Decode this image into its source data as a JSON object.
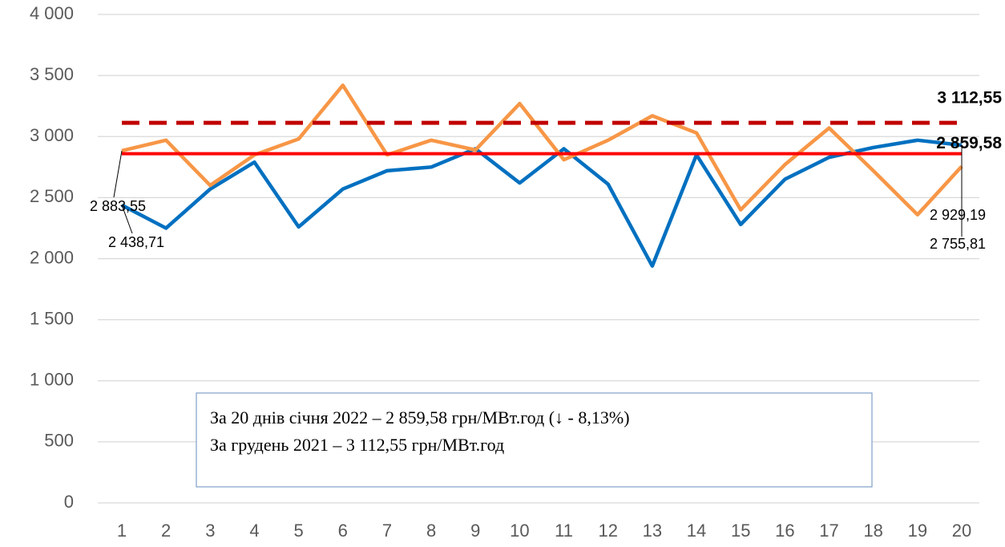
{
  "chart_data": {
    "type": "line",
    "categories": [
      1,
      2,
      3,
      4,
      5,
      6,
      7,
      8,
      9,
      10,
      11,
      12,
      13,
      14,
      15,
      16,
      17,
      18,
      19,
      20
    ],
    "series": [
      {
        "color": "#0070c0",
        "values": [
          2438.71,
          2250,
          2570,
          2790,
          2260,
          2570,
          2720,
          2750,
          2900,
          2620,
          2900,
          2610,
          1940,
          2850,
          2280,
          2650,
          2830,
          2910,
          2970,
          2929.19
        ],
        "value_labels": [
          "2 438,71",
          null,
          null,
          null,
          null,
          null,
          null,
          null,
          null,
          null,
          null,
          null,
          null,
          null,
          null,
          null,
          null,
          null,
          null,
          "2 929,19"
        ]
      },
      {
        "color": "#f79646",
        "values": [
          2883.55,
          2970,
          2600,
          2850,
          2980,
          3420,
          2850,
          2970,
          2890,
          3270,
          2810,
          2970,
          3170,
          3030,
          2400,
          2770,
          3070,
          2720,
          2360,
          2755.81
        ],
        "value_labels": [
          "2 883,55",
          null,
          null,
          null,
          null,
          null,
          null,
          null,
          null,
          null,
          null,
          null,
          null,
          null,
          null,
          null,
          null,
          null,
          null,
          "2 755,81"
        ]
      }
    ],
    "reference_lines": [
      {
        "value": 3112.55,
        "label": "3 112,55",
        "color": "#c00000",
        "dashed": true
      },
      {
        "value": 2859.58,
        "label": "2 859,58",
        "color": "#ff0000",
        "dashed": false
      }
    ],
    "ylim": [
      0,
      4000
    ],
    "yticks": [
      0,
      500,
      {
        "value": 1000,
        "label": "1 000"
      },
      {
        "value": 1500,
        "label": "1 500"
      },
      {
        "value": 2000,
        "label": "2 000"
      },
      {
        "value": 2500,
        "label": "2 500"
      },
      {
        "value": 3000,
        "label": "3 000"
      },
      {
        "value": 3500,
        "label": "3 500"
      },
      {
        "value": 4000,
        "label": "4 000"
      }
    ],
    "grid": true,
    "annotation": [
      "За 20 днів січня 2022 – 2 859,58 грн/МВт.год (↓ - 8,13%)",
      "За грудень 2021 – 3 112,55 грн/МВт.год"
    ]
  }
}
